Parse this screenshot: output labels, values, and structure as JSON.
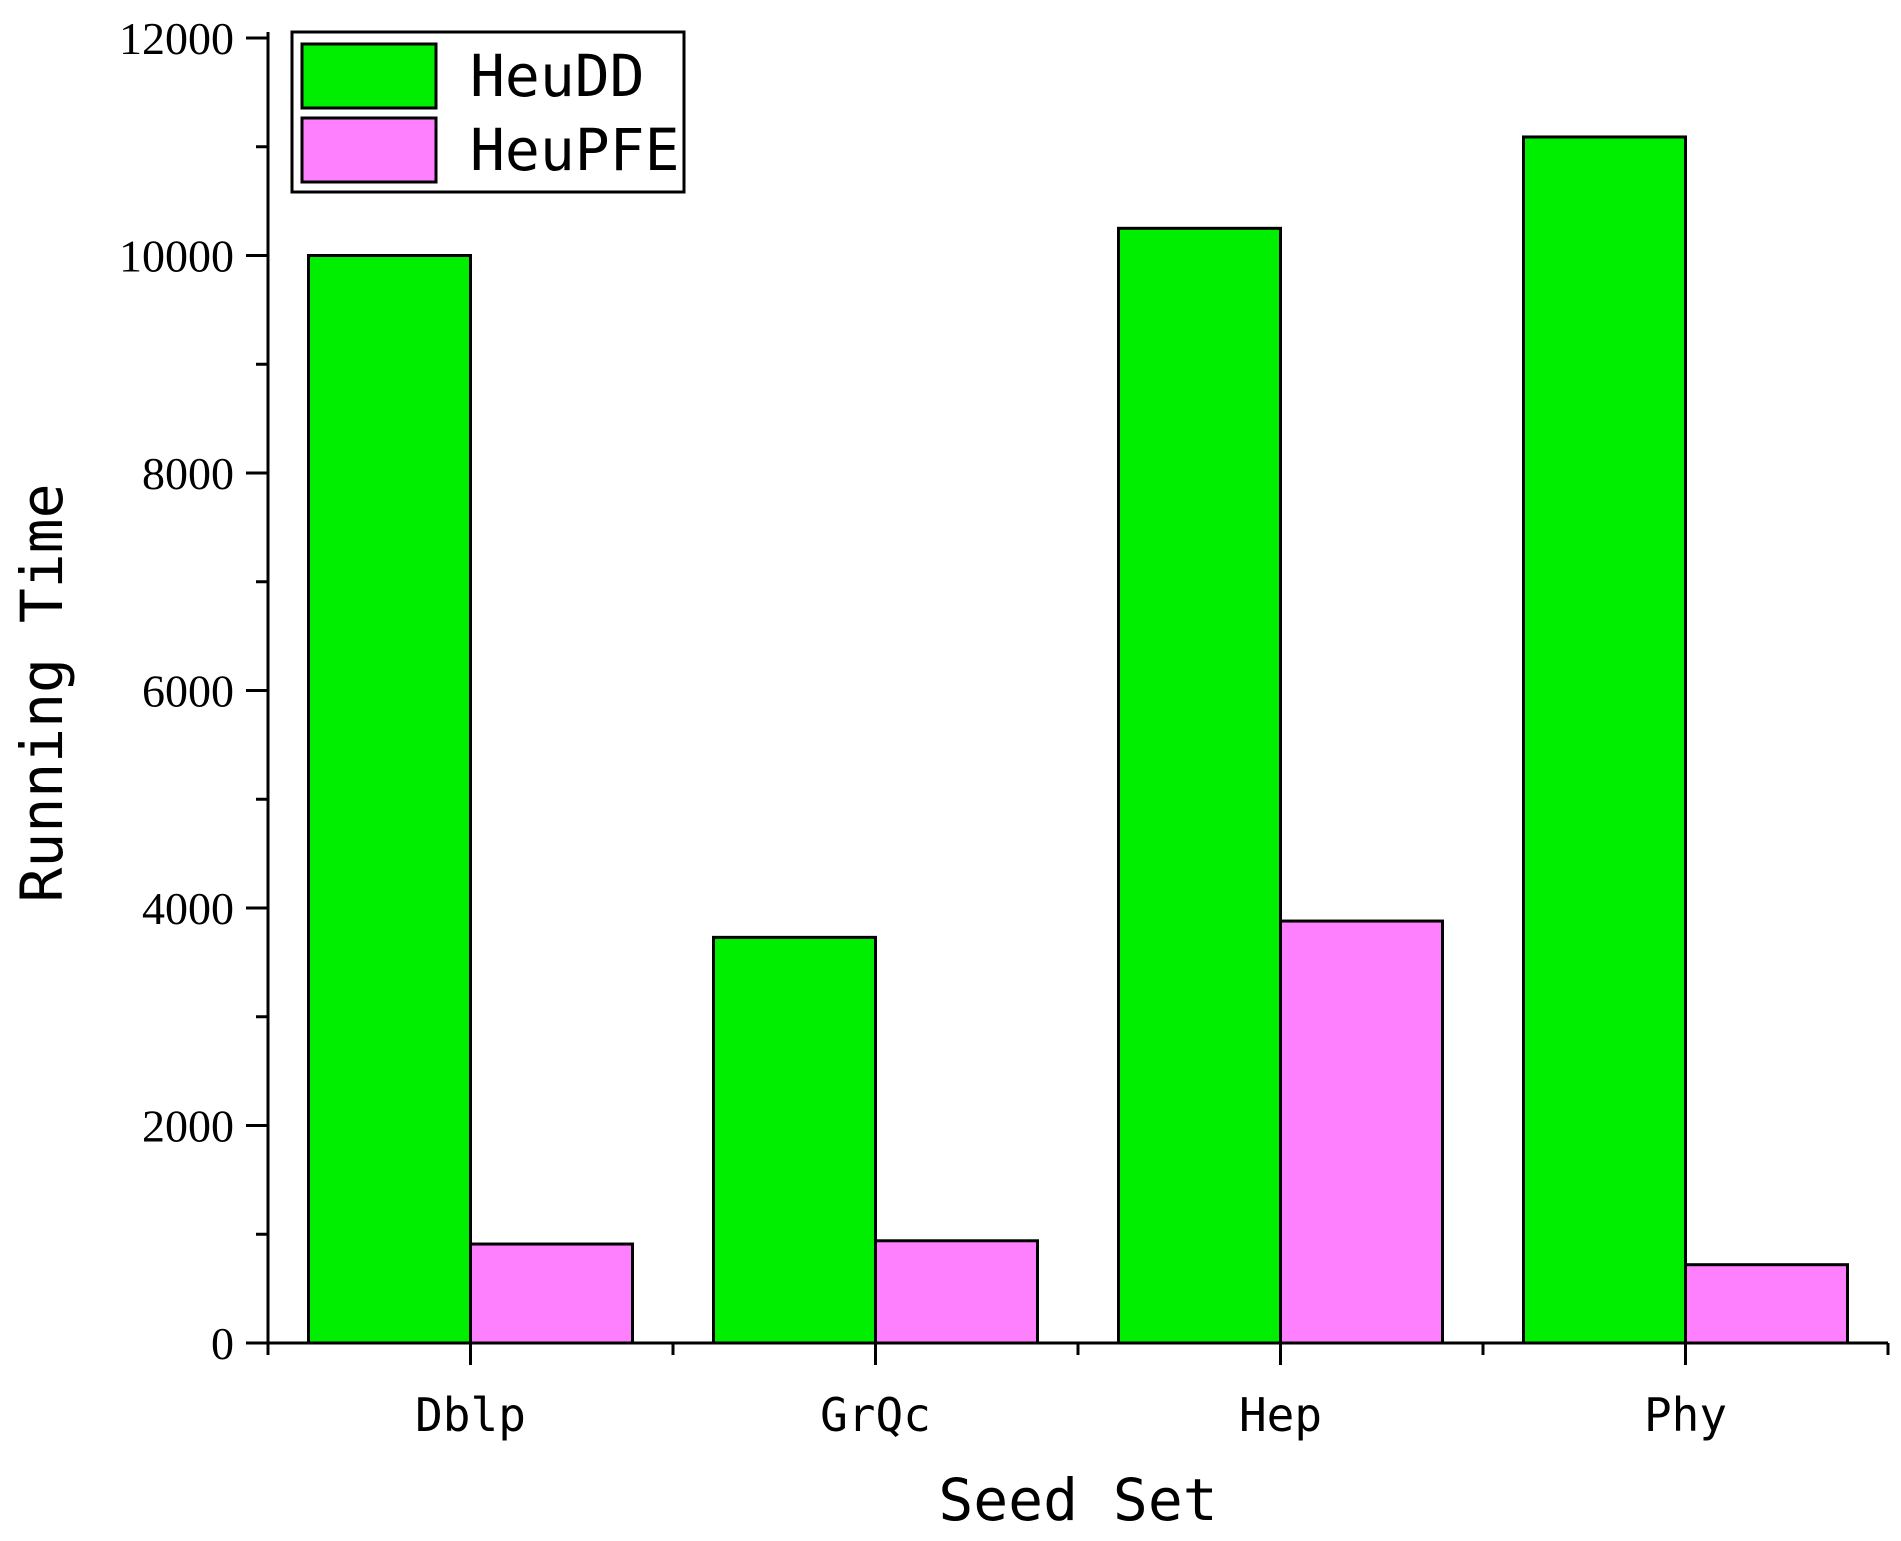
{
  "chart_data": {
    "type": "bar",
    "categories": [
      "Dblp",
      "GrQc",
      "Hep",
      "Phy"
    ],
    "series": [
      {
        "name": "HeuDD",
        "values": [
          10000,
          3730,
          10250,
          11090
        ],
        "color": "#00ee00"
      },
      {
        "name": "HeuPFE",
        "values": [
          910,
          940,
          3880,
          720
        ],
        "color": "#ff80ff"
      }
    ],
    "xlabel": "Seed Set",
    "ylabel": "Running Time",
    "ylim": [
      0,
      12000
    ],
    "yticks": [
      0,
      2000,
      4000,
      6000,
      8000,
      10000,
      12000
    ],
    "grid": false,
    "legend_position": "top-left"
  }
}
